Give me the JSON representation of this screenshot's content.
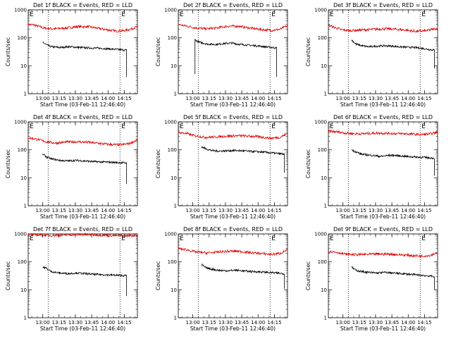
{
  "chart_data": {
    "type": "line",
    "yscale": "log",
    "ylim": [
      1,
      1000
    ],
    "y_ticks": [
      "1",
      "10",
      "100",
      "1000"
    ],
    "x_ticks": [
      "13:00",
      "13:15",
      "13:30",
      "13:45",
      "14:00",
      "14:15"
    ],
    "xlabel": "Start Time (03-Feb-11 12:46:40)",
    "ylabel": "Counts/sec",
    "time_range": [
      "12:46:40",
      "14:27:00"
    ],
    "markers": {
      "label": "E",
      "times": [
        "12:46:40",
        "14:11:00"
      ]
    },
    "vlines": [
      "13:05:00",
      "14:11:00"
    ],
    "series_colors": {
      "events": "#000000",
      "lld": "#dd0000"
    },
    "panels": [
      {
        "title": "Det 1f BLACK = Events, RED = LLD",
        "lld": {
          "start": "12:46:40",
          "end": "14:27:00",
          "points": [
            [
              0,
              300
            ],
            [
              0.05,
              290
            ],
            [
              0.15,
              220
            ],
            [
              0.25,
              210
            ],
            [
              0.35,
              225
            ],
            [
              0.45,
              250
            ],
            [
              0.55,
              250
            ],
            [
              0.65,
              215
            ],
            [
              0.72,
              195
            ],
            [
              0.8,
              175
            ],
            [
              0.88,
              180
            ],
            [
              0.93,
              200
            ],
            [
              1.0,
              250
            ]
          ]
        },
        "events": {
          "start": "13:00:00",
          "end": "14:17:00",
          "drop_to": 4,
          "points": [
            [
              0,
              70
            ],
            [
              0.05,
              55
            ],
            [
              0.1,
              48
            ],
            [
              0.2,
              45
            ],
            [
              0.3,
              48
            ],
            [
              0.4,
              46
            ],
            [
              0.5,
              44
            ],
            [
              0.6,
              43
            ],
            [
              0.7,
              42
            ],
            [
              0.8,
              40
            ],
            [
              0.9,
              38
            ],
            [
              1.0,
              36
            ]
          ]
        }
      },
      {
        "title": "Det 2f BLACK = Events, RED = LLD",
        "lld": {
          "start": "12:46:40",
          "end": "14:27:00",
          "points": [
            [
              0,
              300
            ],
            [
              0.08,
              260
            ],
            [
              0.15,
              230
            ],
            [
              0.25,
              210
            ],
            [
              0.35,
              225
            ],
            [
              0.45,
              260
            ],
            [
              0.55,
              260
            ],
            [
              0.65,
              225
            ],
            [
              0.75,
              200
            ],
            [
              0.85,
              185
            ],
            [
              0.93,
              200
            ],
            [
              1.0,
              270
            ]
          ]
        },
        "events": {
          "start": "13:02:00",
          "end": "14:17:00",
          "drop_to": 4,
          "start_from": 5,
          "points": [
            [
              0,
              85
            ],
            [
              0.05,
              70
            ],
            [
              0.15,
              60
            ],
            [
              0.25,
              58
            ],
            [
              0.35,
              62
            ],
            [
              0.45,
              65
            ],
            [
              0.55,
              58
            ],
            [
              0.65,
              55
            ],
            [
              0.75,
              52
            ],
            [
              0.85,
              48
            ],
            [
              0.95,
              45
            ],
            [
              1.0,
              43
            ]
          ]
        }
      },
      {
        "title": "Det 3f BLACK = Events, RED = LLD",
        "lld": {
          "start": "12:46:40",
          "end": "14:27:00",
          "points": [
            [
              0,
              280
            ],
            [
              0.05,
              240
            ],
            [
              0.12,
              195
            ],
            [
              0.2,
              180
            ],
            [
              0.3,
              190
            ],
            [
              0.4,
              200
            ],
            [
              0.5,
              210
            ],
            [
              0.6,
              205
            ],
            [
              0.7,
              190
            ],
            [
              0.8,
              170
            ],
            [
              0.9,
              180
            ],
            [
              1.0,
              220
            ]
          ]
        },
        "events": {
          "start": "13:08:00",
          "end": "14:24:00",
          "drop_to": 8,
          "points": [
            [
              0,
              85
            ],
            [
              0.05,
              60
            ],
            [
              0.12,
              52
            ],
            [
              0.2,
              48
            ],
            [
              0.3,
              50
            ],
            [
              0.4,
              52
            ],
            [
              0.5,
              50
            ],
            [
              0.6,
              47
            ],
            [
              0.7,
              46
            ],
            [
              0.8,
              44
            ],
            [
              0.9,
              40
            ],
            [
              1.0,
              36
            ]
          ]
        }
      },
      {
        "title": "Det 4f BLACK = Events, RED = LLD",
        "lld": {
          "start": "12:46:40",
          "end": "14:27:00",
          "points": [
            [
              0,
              270
            ],
            [
              0.08,
              240
            ],
            [
              0.15,
              200
            ],
            [
              0.25,
              175
            ],
            [
              0.35,
              190
            ],
            [
              0.45,
              195
            ],
            [
              0.55,
              185
            ],
            [
              0.65,
              170
            ],
            [
              0.75,
              155
            ],
            [
              0.85,
              150
            ],
            [
              0.93,
              170
            ],
            [
              1.0,
              230
            ]
          ]
        },
        "events": {
          "start": "13:00:00",
          "end": "14:17:00",
          "drop_to": 6,
          "points": [
            [
              0,
              70
            ],
            [
              0.05,
              55
            ],
            [
              0.1,
              48
            ],
            [
              0.2,
              42
            ],
            [
              0.3,
              40
            ],
            [
              0.4,
              42
            ],
            [
              0.5,
              40
            ],
            [
              0.6,
              38
            ],
            [
              0.7,
              37
            ],
            [
              0.8,
              36
            ],
            [
              0.9,
              35
            ],
            [
              1.0,
              34
            ]
          ]
        }
      },
      {
        "title": "Det 5f BLACK = Events, RED = LLD",
        "lld": {
          "start": "12:46:40",
          "end": "14:27:00",
          "points": [
            [
              0,
              420
            ],
            [
              0.08,
              380
            ],
            [
              0.15,
              320
            ],
            [
              0.25,
              280
            ],
            [
              0.35,
              290
            ],
            [
              0.45,
              310
            ],
            [
              0.55,
              320
            ],
            [
              0.65,
              310
            ],
            [
              0.75,
              290
            ],
            [
              0.85,
              260
            ],
            [
              0.93,
              280
            ],
            [
              1.0,
              380
            ]
          ]
        },
        "events": {
          "start": "13:08:00",
          "end": "14:24:00",
          "drop_to": 15,
          "points": [
            [
              0,
              130
            ],
            [
              0.05,
              110
            ],
            [
              0.12,
              95
            ],
            [
              0.2,
              90
            ],
            [
              0.3,
              92
            ],
            [
              0.4,
              95
            ],
            [
              0.5,
              92
            ],
            [
              0.6,
              88
            ],
            [
              0.7,
              85
            ],
            [
              0.8,
              80
            ],
            [
              0.9,
              75
            ],
            [
              1.0,
              70
            ]
          ]
        }
      },
      {
        "title": "Det 6f BLACK = Events, RED = LLD",
        "lld": {
          "start": "12:46:40",
          "end": "14:27:00",
          "points": [
            [
              0,
              460
            ],
            [
              0.08,
              440
            ],
            [
              0.15,
              400
            ],
            [
              0.25,
              375
            ],
            [
              0.35,
              380
            ],
            [
              0.45,
              400
            ],
            [
              0.55,
              390
            ],
            [
              0.65,
              380
            ],
            [
              0.75,
              370
            ],
            [
              0.85,
              350
            ],
            [
              0.93,
              370
            ],
            [
              1.0,
              420
            ]
          ]
        },
        "events": {
          "start": "13:08:00",
          "end": "14:24:00",
          "drop_to": 12,
          "points": [
            [
              0,
              100
            ],
            [
              0.05,
              85
            ],
            [
              0.12,
              70
            ],
            [
              0.2,
              65
            ],
            [
              0.28,
              62
            ],
            [
              0.35,
              58
            ],
            [
              0.42,
              62
            ],
            [
              0.5,
              64
            ],
            [
              0.6,
              60
            ],
            [
              0.7,
              57
            ],
            [
              0.8,
              55
            ],
            [
              0.9,
              53
            ],
            [
              1.0,
              50
            ]
          ]
        }
      },
      {
        "title": "Det 7f BLACK = Events, RED = LLD",
        "lld": {
          "start": "12:46:40",
          "end": "14:27:00",
          "points": [
            [
              0,
              950
            ],
            [
              0.1,
              920
            ],
            [
              0.2,
              880
            ],
            [
              0.3,
              900
            ],
            [
              0.4,
              940
            ],
            [
              0.5,
              950
            ],
            [
              0.6,
              930
            ],
            [
              0.7,
              900
            ],
            [
              0.8,
              870
            ],
            [
              0.9,
              860
            ],
            [
              1.0,
              900
            ]
          ]
        },
        "events": {
          "start": "13:00:00",
          "end": "14:17:00",
          "drop_to": 6,
          "points": [
            [
              0,
              65
            ],
            [
              0.04,
              60
            ],
            [
              0.1,
              45
            ],
            [
              0.2,
              40
            ],
            [
              0.3,
              38
            ],
            [
              0.4,
              40
            ],
            [
              0.5,
              38
            ],
            [
              0.6,
              36
            ],
            [
              0.7,
              35
            ],
            [
              0.8,
              34
            ],
            [
              0.9,
              33
            ],
            [
              1.0,
              32
            ]
          ]
        }
      },
      {
        "title": "Det 8f BLACK = Events, RED = LLD",
        "lld": {
          "start": "12:46:40",
          "end": "14:27:00",
          "points": [
            [
              0,
              300
            ],
            [
              0.08,
              270
            ],
            [
              0.15,
              230
            ],
            [
              0.25,
              210
            ],
            [
              0.35,
              220
            ],
            [
              0.45,
              240
            ],
            [
              0.55,
              240
            ],
            [
              0.65,
              215
            ],
            [
              0.75,
              200
            ],
            [
              0.85,
              185
            ],
            [
              0.93,
              200
            ],
            [
              1.0,
              270
            ]
          ]
        },
        "events": {
          "start": "13:08:00",
          "end": "14:24:00",
          "drop_to": 11,
          "points": [
            [
              0,
              80
            ],
            [
              0.05,
              62
            ],
            [
              0.12,
              55
            ],
            [
              0.2,
              50
            ],
            [
              0.3,
              48
            ],
            [
              0.4,
              50
            ],
            [
              0.5,
              48
            ],
            [
              0.6,
              45
            ],
            [
              0.7,
              44
            ],
            [
              0.8,
              42
            ],
            [
              0.9,
              40
            ],
            [
              1.0,
              38
            ]
          ]
        }
      },
      {
        "title": "Det 9f BLACK = Events, RED = LLD",
        "lld": {
          "start": "12:46:40",
          "end": "14:27:00",
          "points": [
            [
              0,
              240
            ],
            [
              0.08,
              220
            ],
            [
              0.15,
              190
            ],
            [
              0.25,
              180
            ],
            [
              0.35,
              185
            ],
            [
              0.45,
              190
            ],
            [
              0.55,
              190
            ],
            [
              0.65,
              180
            ],
            [
              0.75,
              170
            ],
            [
              0.85,
              160
            ],
            [
              0.93,
              170
            ],
            [
              1.0,
              220
            ]
          ]
        },
        "events": {
          "start": "13:08:00",
          "end": "14:24:00",
          "drop_to": 10,
          "points": [
            [
              0,
              65
            ],
            [
              0.05,
              50
            ],
            [
              0.12,
              45
            ],
            [
              0.2,
              42
            ],
            [
              0.3,
              40
            ],
            [
              0.4,
              42
            ],
            [
              0.5,
              40
            ],
            [
              0.6,
              38
            ],
            [
              0.7,
              36
            ],
            [
              0.8,
              34
            ],
            [
              0.9,
              32
            ],
            [
              1.0,
              30
            ]
          ]
        }
      }
    ]
  }
}
